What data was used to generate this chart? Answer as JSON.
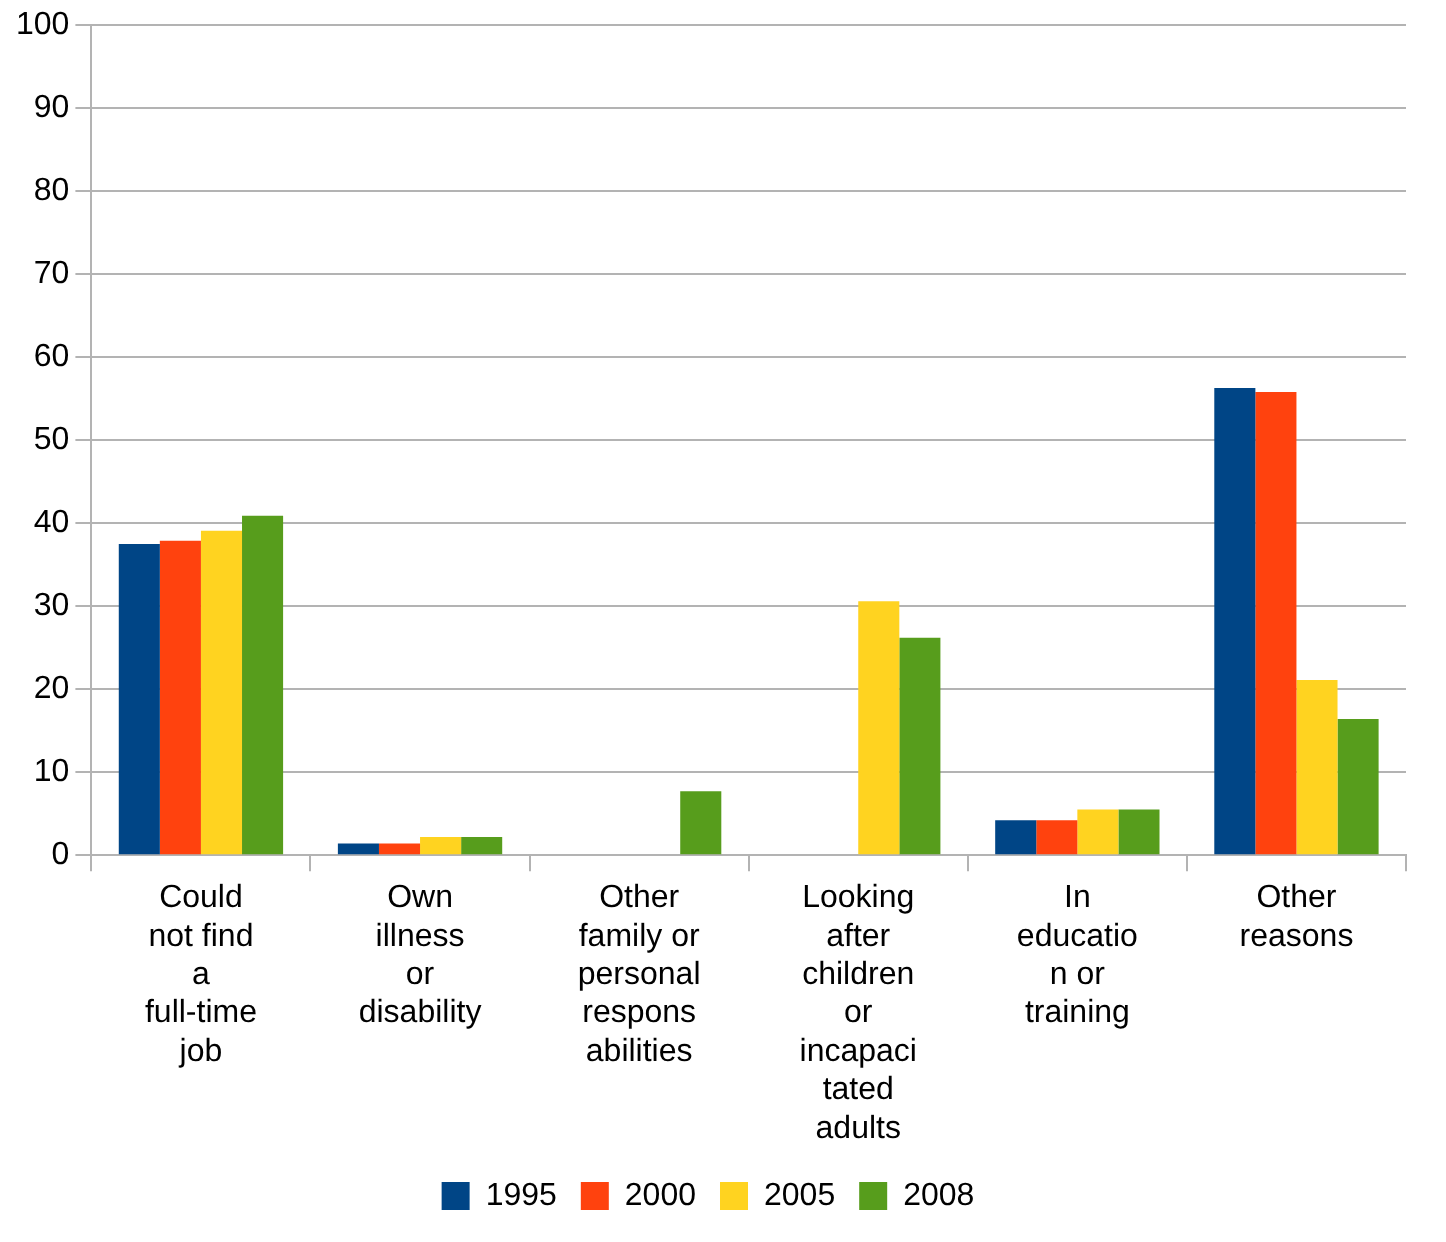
{
  "chart_data": {
    "type": "bar",
    "categories": [
      "Could not find a full-time job",
      "Own illness or disability",
      "Other family or personal responsabilities",
      "Looking after children or incapacitated adults",
      "In education or training",
      "Other reasons"
    ],
    "series": [
      {
        "name": "1995",
        "color": "#004586",
        "values": [
          37.5,
          1.4,
          0,
          0,
          4.2,
          56.3
        ]
      },
      {
        "name": "2000",
        "color": "#ff420e",
        "values": [
          37.9,
          1.4,
          0,
          0,
          4.2,
          55.8
        ]
      },
      {
        "name": "2005",
        "color": "#ffd320",
        "values": [
          39.1,
          2.2,
          0,
          30.6,
          5.5,
          21.1
        ]
      },
      {
        "name": "2008",
        "color": "#579d1c",
        "values": [
          40.9,
          2.2,
          7.7,
          26.2,
          5.5,
          16.4
        ]
      }
    ],
    "ylim": [
      0,
      100
    ],
    "yticks": [
      0,
      10,
      20,
      30,
      40,
      50,
      60,
      70,
      80,
      90,
      100
    ],
    "grid": "y",
    "legend": "bottom"
  }
}
